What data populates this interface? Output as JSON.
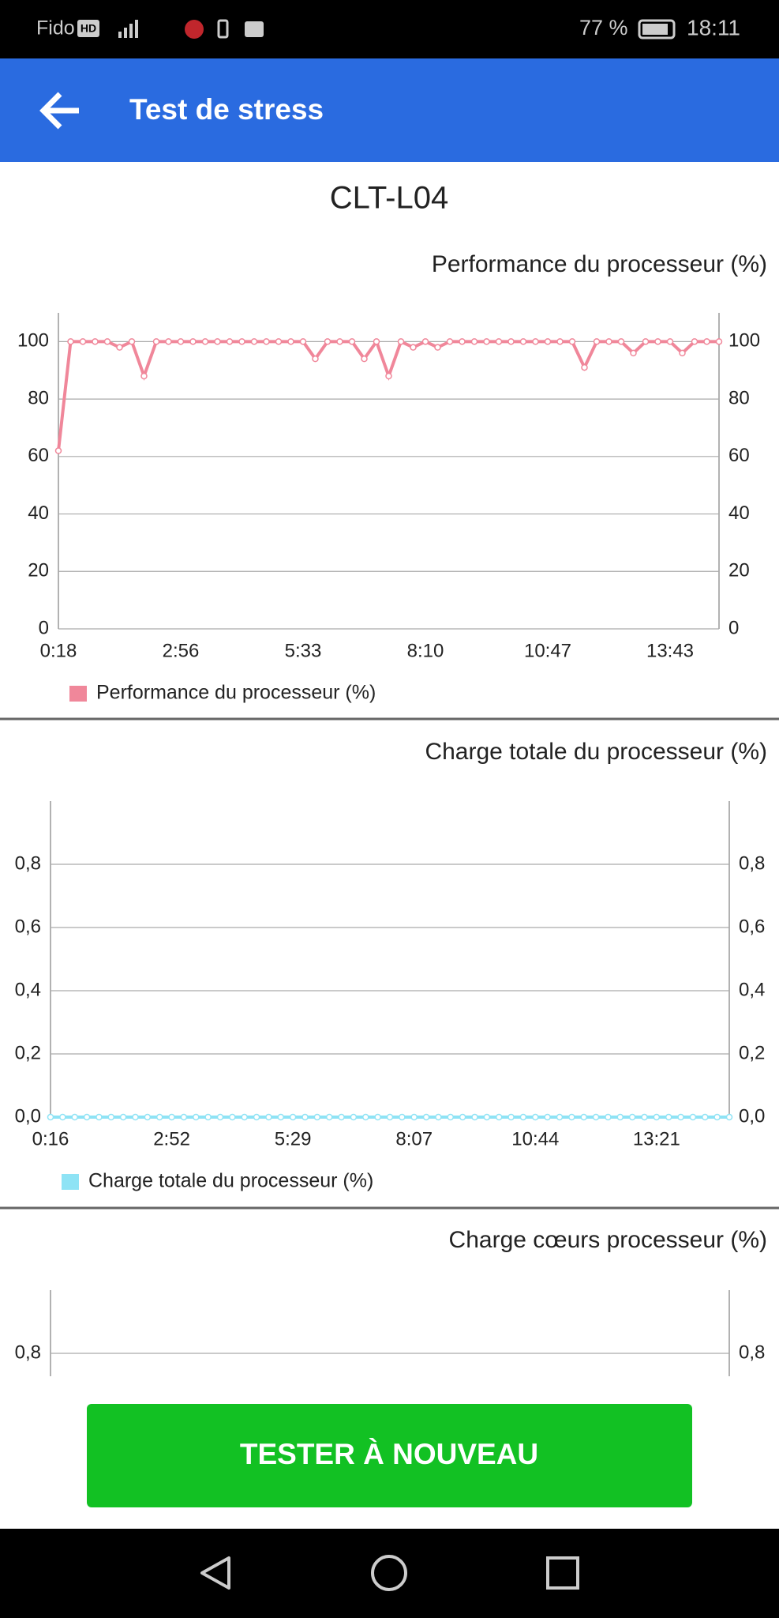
{
  "status_bar": {
    "carrier": "Fido",
    "badge": "HD",
    "battery": "77 %",
    "time": "18:11"
  },
  "app_bar": {
    "title": "Test de stress"
  },
  "device": "CLT-L04",
  "chart_data": [
    {
      "type": "line",
      "title": "Performance du processeur (%)",
      "categories": [
        "0:18",
        null,
        null,
        null,
        null,
        null,
        null,
        null,
        null,
        null,
        "2:56",
        null,
        null,
        null,
        null,
        null,
        null,
        null,
        null,
        null,
        "5:33",
        null,
        null,
        null,
        null,
        null,
        null,
        null,
        null,
        null,
        "8:10",
        null,
        null,
        null,
        null,
        null,
        null,
        null,
        null,
        null,
        "10:47",
        null,
        null,
        null,
        null,
        null,
        null,
        null,
        null,
        null,
        "13:43",
        null,
        null,
        null,
        null
      ],
      "series": [
        {
          "name": "Performance du processeur (%)",
          "color": "#f0879a",
          "values": [
            62,
            100,
            100,
            100,
            100,
            98,
            100,
            88,
            100,
            100,
            100,
            100,
            100,
            100,
            100,
            100,
            100,
            100,
            100,
            100,
            100,
            94,
            100,
            100,
            100,
            94,
            100,
            88,
            100,
            98,
            100,
            98,
            100,
            100,
            100,
            100,
            100,
            100,
            100,
            100,
            100,
            100,
            100,
            91,
            100,
            100,
            100,
            96,
            100,
            100,
            100,
            96,
            100,
            100,
            100
          ]
        }
      ],
      "ylim": [
        0,
        110
      ],
      "yticks": [
        0,
        20,
        40,
        60,
        80,
        100
      ],
      "grid": true
    },
    {
      "type": "line",
      "title": "Charge totale du processeur (%)",
      "categories": [
        "0:16",
        null,
        null,
        null,
        null,
        null,
        null,
        null,
        null,
        null,
        "2:52",
        null,
        null,
        null,
        null,
        null,
        null,
        null,
        null,
        null,
        "5:29",
        null,
        null,
        null,
        null,
        null,
        null,
        null,
        null,
        null,
        "8:07",
        null,
        null,
        null,
        null,
        null,
        null,
        null,
        null,
        null,
        "10:44",
        null,
        null,
        null,
        null,
        null,
        null,
        null,
        null,
        null,
        "13:21",
        null,
        null,
        null,
        null,
        null,
        null
      ],
      "series": [
        {
          "name": "Charge totale du processeur (%)",
          "color": "#8ee3f5",
          "values": [
            0,
            0,
            0,
            0,
            0,
            0,
            0,
            0,
            0,
            0,
            0,
            0,
            0,
            0,
            0,
            0,
            0,
            0,
            0,
            0,
            0,
            0,
            0,
            0,
            0,
            0,
            0,
            0,
            0,
            0,
            0,
            0,
            0,
            0,
            0,
            0,
            0,
            0,
            0,
            0,
            0,
            0,
            0,
            0,
            0,
            0,
            0,
            0,
            0,
            0,
            0,
            0,
            0,
            0,
            0,
            0,
            0
          ]
        }
      ],
      "ylim": [
        0,
        1
      ],
      "yticks": [
        {
          "value": 0,
          "label": "0,0"
        },
        {
          "value": 0.2,
          "label": "0,2"
        },
        {
          "value": 0.4,
          "label": "0,4"
        },
        {
          "value": 0.6,
          "label": "0,6"
        },
        {
          "value": 0.8,
          "label": "0,8"
        }
      ],
      "grid": true
    },
    {
      "type": "line",
      "title": "Charge cœurs processeur (%)",
      "ylim": [
        0,
        1
      ],
      "yticks": [
        {
          "value": 0.8,
          "label": "0,8"
        }
      ],
      "grid": true
    }
  ],
  "button": "TESTER À NOUVEAU"
}
